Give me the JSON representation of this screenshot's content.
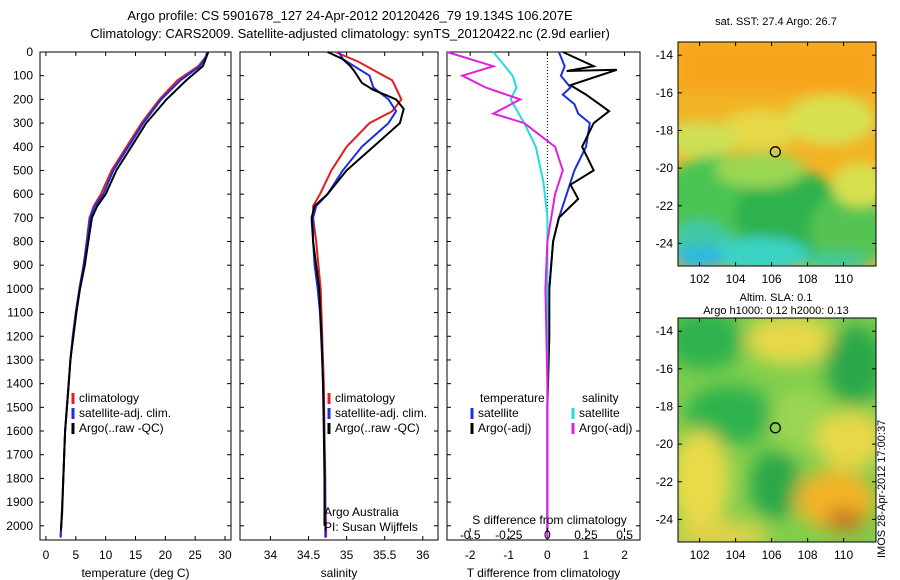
{
  "header": {
    "title_line1": "Argo profile: CS 5901678_127 24-Apr-2012 20120426_79 19.134S 106.207E",
    "title_line2": "Climatology: CARS2009. Satellite-adjusted climatology: synTS_20120422.nc (2.9d earlier)"
  },
  "colors": {
    "climatology": "#e02020",
    "satellite": "#1a2ee0",
    "argo": "#000000",
    "sat_salinity": "#22dddd",
    "argo_salinity_diff": "#e020e0"
  },
  "depth_ticks": [
    0,
    100,
    200,
    300,
    400,
    500,
    600,
    700,
    800,
    900,
    1000,
    1100,
    1200,
    1300,
    1400,
    1500,
    1600,
    1700,
    1800,
    1900,
    2000
  ],
  "chart_data": [
    {
      "type": "line",
      "xlabel": "temperature (deg C)",
      "xlim": [
        -1,
        31
      ],
      "ylim": [
        2060,
        0
      ],
      "xticks": [
        0,
        5,
        10,
        15,
        20,
        25,
        30
      ],
      "legend": {
        "placement": "bottom-right",
        "items": [
          "climatology",
          "satellite-adj. clim.",
          "Argo(..raw -QC)"
        ]
      },
      "series": [
        {
          "name": "climatology",
          "color": "#e02020",
          "x": [
            27.1,
            26.8,
            25.5,
            22.0,
            19.0,
            16.0,
            13.5,
            11.0,
            9.2,
            8.0,
            7.3,
            6.8,
            6.3,
            5.6,
            5.0,
            4.5,
            4.1,
            3.8,
            3.5,
            3.2,
            2.9,
            2.65,
            2.45
          ],
          "y": [
            0,
            20,
            60,
            120,
            200,
            300,
            400,
            500,
            600,
            650,
            700,
            800,
            900,
            1000,
            1100,
            1200,
            1300,
            1400,
            1500,
            1600,
            1800,
            1950,
            2050
          ]
        },
        {
          "name": "satellite-adj. clim.",
          "color": "#1a2ee0",
          "x": [
            27.0,
            26.8,
            25.8,
            22.5,
            19.3,
            16.3,
            13.8,
            11.3,
            9.6,
            8.2,
            7.4,
            6.9,
            6.3,
            5.6,
            5.0,
            4.5,
            4.1,
            3.8,
            3.5,
            3.2,
            2.9,
            2.65,
            2.45
          ],
          "y": [
            0,
            20,
            60,
            120,
            200,
            300,
            400,
            500,
            600,
            650,
            700,
            800,
            900,
            1000,
            1100,
            1200,
            1300,
            1400,
            1500,
            1600,
            1800,
            1950,
            2050
          ]
        },
        {
          "name": "Argo(..raw -QC)",
          "color": "#000000",
          "x": [
            27.2,
            26.9,
            26.3,
            23.5,
            20.2,
            16.8,
            14.3,
            11.8,
            10.0,
            8.6,
            7.7,
            7.1,
            6.5,
            5.7,
            5.1,
            4.6,
            4.1,
            3.8,
            3.5,
            3.2,
            2.9,
            2.7,
            2.5
          ],
          "y": [
            0,
            20,
            60,
            120,
            200,
            300,
            400,
            500,
            600,
            650,
            700,
            800,
            900,
            1000,
            1100,
            1200,
            1300,
            1400,
            1500,
            1600,
            1800,
            1950,
            2020
          ]
        }
      ]
    },
    {
      "type": "line",
      "xlabel": "salinity",
      "xlim": [
        33.6,
        36.2
      ],
      "ylim": [
        2060,
        0
      ],
      "xticks": [
        34,
        34.5,
        35,
        35.5,
        36
      ],
      "xticklabels": [
        "34",
        "34.5",
        "35",
        "35.5",
        "36"
      ],
      "legend": {
        "placement": "bottom-right",
        "items": [
          "climatology",
          "satellite-adj. clim.",
          "Argo(..raw -QC)"
        ]
      },
      "annotations": [
        "Argo Australia",
        "PI: Susan Wijffels"
      ],
      "series": [
        {
          "name": "climatology",
          "color": "#e02020",
          "x": [
            34.85,
            35.15,
            35.6,
            35.72,
            35.6,
            35.3,
            35.0,
            34.8,
            34.65,
            34.56,
            34.56,
            34.6,
            34.63,
            34.66,
            34.68,
            34.7,
            34.71,
            34.72,
            34.72,
            34.73,
            34.73
          ],
          "y": [
            0,
            40,
            120,
            200,
            250,
            300,
            400,
            500,
            600,
            650,
            700,
            800,
            900,
            1000,
            1200,
            1400,
            1600,
            1800,
            1900,
            2000,
            2050
          ]
        },
        {
          "name": "satellite-adj. clim.",
          "color": "#1a2ee0",
          "x": [
            34.9,
            34.95,
            35.1,
            35.3,
            35.35,
            35.55,
            35.65,
            35.55,
            35.2,
            34.95,
            34.75,
            34.6,
            34.56,
            34.56,
            34.58,
            34.62,
            34.65,
            34.68,
            34.7,
            34.71,
            34.72,
            34.72
          ],
          "y": [
            0,
            30,
            60,
            100,
            150,
            200,
            250,
            300,
            400,
            500,
            600,
            650,
            700,
            800,
            900,
            1000,
            1100,
            1300,
            1500,
            1700,
            1900,
            2050
          ]
        },
        {
          "name": "Argo(..raw -QC)",
          "color": "#000000",
          "x": [
            34.75,
            34.95,
            35.05,
            35.1,
            35.2,
            35.35,
            35.5,
            35.65,
            35.75,
            35.7,
            35.35,
            35.0,
            34.75,
            34.58,
            34.54,
            34.56,
            34.6,
            34.64,
            34.67,
            34.69,
            34.7,
            34.71,
            34.71
          ],
          "y": [
            0,
            30,
            60,
            80,
            130,
            160,
            180,
            200,
            240,
            300,
            400,
            500,
            600,
            650,
            700,
            800,
            900,
            1000,
            1200,
            1400,
            1600,
            1800,
            2000
          ]
        }
      ]
    },
    {
      "type": "line",
      "xlabel": "T difference from climatology",
      "xlim": [
        -2.6,
        2.4
      ],
      "ylim": [
        2060,
        0
      ],
      "xticks": [
        -2,
        -1,
        0,
        1,
        2
      ],
      "secondary_xlabel": "S difference from climatology",
      "secondary_xticks": [
        -0.5,
        -0.25,
        0,
        0.25,
        0.5
      ],
      "secondary_xticklabels": [
        "-0.5",
        "-0.25",
        "0",
        "0.25",
        "0.5"
      ],
      "legend": {
        "placement": "bottom",
        "groups": [
          {
            "title": "temperature",
            "items": [
              "satellite",
              "Argo(-adj)"
            ]
          },
          {
            "title": "salinity",
            "items": [
              "satellite",
              "Argo(-adj)"
            ]
          }
        ]
      },
      "series": [
        {
          "name": "temperature satellite",
          "color": "#1a2ee0",
          "x": [
            0.3,
            0.45,
            0.35,
            0.6,
            0.4,
            0.7,
            0.8,
            1.1,
            1.0,
            0.7,
            0.5,
            0.3,
            0.15,
            0.05,
            0.02,
            0.0,
            0.0,
            0.0
          ],
          "y": [
            0,
            60,
            100,
            150,
            180,
            220,
            260,
            300,
            400,
            500,
            600,
            700,
            800,
            1000,
            1200,
            1500,
            1800,
            2050
          ]
        },
        {
          "name": "temperature Argo(-adj)",
          "color": "#000000",
          "x": [
            0.4,
            1.2,
            0.5,
            1.8,
            0.6,
            1.0,
            1.6,
            1.2,
            0.9,
            1.2,
            0.6,
            0.8,
            0.3,
            0.15,
            0.05,
            0.05,
            0.0,
            0.0,
            0.0
          ],
          "y": [
            0,
            60,
            80,
            75,
            140,
            180,
            250,
            300,
            400,
            500,
            560,
            620,
            700,
            800,
            1000,
            1200,
            1500,
            1800,
            2050
          ]
        },
        {
          "name": "salinity satellite",
          "color": "#22dddd",
          "x": [
            -1.4,
            -1.1,
            -0.9,
            -0.8,
            -0.95,
            -0.6,
            -0.3,
            -0.1,
            0.0,
            0.0,
            0.0,
            0.0,
            0.0
          ],
          "y": [
            0,
            60,
            100,
            150,
            200,
            300,
            400,
            550,
            700,
            900,
            1200,
            1600,
            2050
          ]
        },
        {
          "name": "salinity Argo(-adj)",
          "color": "#e020e0",
          "x": [
            -2.6,
            -1.4,
            -2.2,
            -1.6,
            -0.7,
            -1.4,
            -0.6,
            0.2,
            0.4,
            0.2,
            0.1,
            0.0,
            -0.05,
            0.0,
            0.0
          ],
          "y": [
            0,
            60,
            100,
            150,
            200,
            260,
            300,
            400,
            500,
            600,
            700,
            800,
            1000,
            1400,
            2050
          ]
        }
      ]
    },
    {
      "type": "heatmap",
      "title": "sat. SST: 27.4  Argo: 26.7",
      "xticks": [
        102,
        104,
        106,
        108,
        110
      ],
      "yticks": [
        -14,
        -16,
        -18,
        -20,
        -22,
        -24
      ],
      "xlim": [
        100.8,
        111.8
      ],
      "ylim": [
        -25.2,
        -13.3
      ],
      "marker": {
        "lon": 106.207,
        "lat": -19.134
      }
    },
    {
      "type": "heatmap",
      "title": "Altim. SLA: 0.1",
      "subtitle": "Argo h1000: 0.12 h2000: 0.13",
      "xticks": [
        102,
        104,
        106,
        108,
        110
      ],
      "yticks": [
        -14,
        -16,
        -18,
        -20,
        -22,
        -24
      ],
      "xlim": [
        100.8,
        111.8
      ],
      "ylim": [
        -25.2,
        -13.3
      ],
      "marker": {
        "lon": 106.207,
        "lat": -19.134
      }
    }
  ],
  "footer": {
    "timestamp": "IMOS 28-Apr-2012 17:00:37"
  }
}
